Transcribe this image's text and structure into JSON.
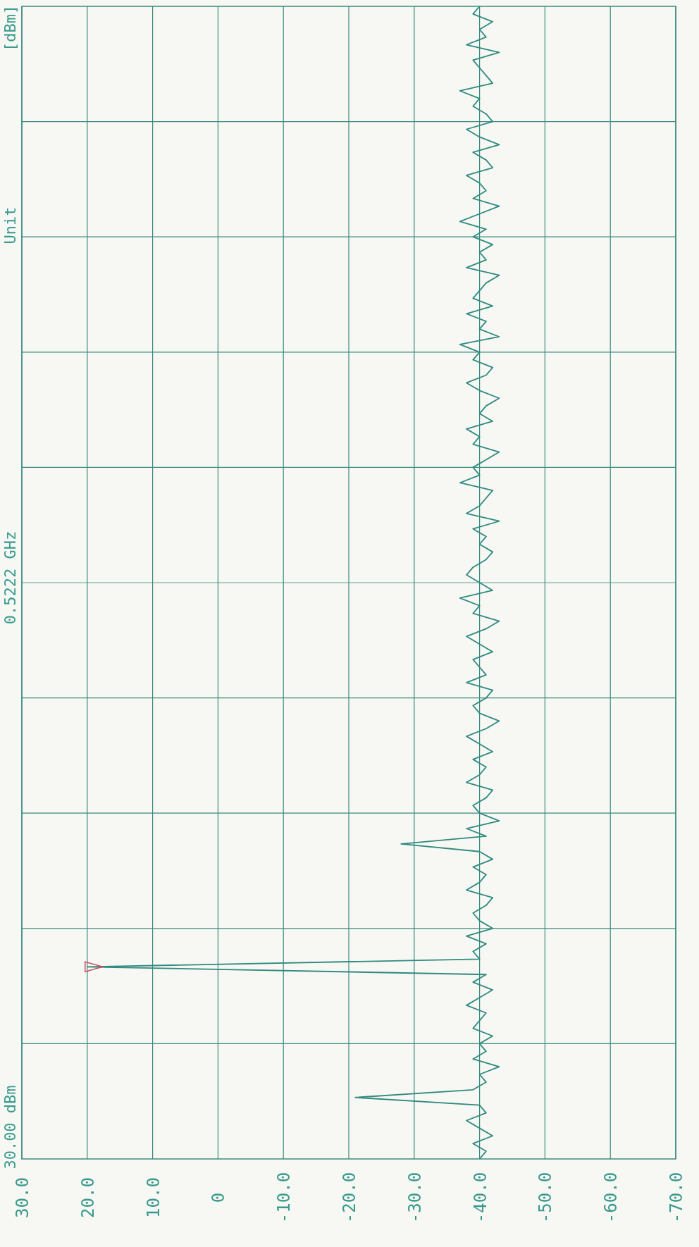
{
  "chart_data": {
    "type": "line",
    "categories": [
      null,
      null,
      null,
      null,
      null,
      null,
      null,
      null,
      null,
      null,
      null,
      null,
      null,
      null,
      null,
      null,
      null,
      null,
      null,
      null,
      null,
      null,
      null,
      null,
      null,
      null,
      null,
      null,
      null,
      null,
      null,
      null,
      null,
      null,
      null,
      null,
      null,
      null,
      null,
      null,
      null,
      null,
      null,
      null,
      null,
      null,
      null,
      null,
      null,
      null,
      null,
      null,
      null,
      null,
      null,
      null,
      null,
      null,
      null,
      null,
      null,
      null,
      null,
      null,
      null,
      null,
      null,
      null,
      null,
      null,
      null,
      null,
      null,
      null,
      null,
      null,
      null,
      null,
      null,
      null,
      null,
      null,
      null,
      null,
      null,
      null,
      null,
      null,
      null,
      null,
      null,
      null,
      null,
      null,
      null,
      null,
      null,
      null,
      null,
      null,
      null,
      null,
      null,
      null,
      null,
      null,
      null,
      null,
      null,
      null,
      null,
      null,
      null,
      null,
      null,
      null,
      null,
      null,
      null,
      null,
      null,
      null,
      null,
      null,
      null,
      null,
      null,
      null,
      null,
      null,
      null,
      null,
      null,
      null,
      null,
      null,
      null,
      null,
      null,
      null,
      null,
      null,
      null,
      null,
      null,
      null,
      null,
      null,
      null,
      null,
      null
    ],
    "series": [
      {
        "color": "#2f8a80",
        "values": [
          -40,
          -39,
          -42,
          -40,
          -41,
          -38,
          -43,
          -39,
          -40,
          -41,
          -42,
          -37,
          -40,
          -39,
          -41,
          -42,
          -38,
          -40,
          -43,
          -39,
          -41,
          -42,
          -38,
          -40,
          -41,
          -39,
          -43,
          -40,
          -37,
          -41,
          -39,
          -42,
          -40,
          -41,
          -38,
          -43,
          -41,
          -40,
          -39,
          -42,
          -38,
          -41,
          -40,
          -43,
          -37,
          -40,
          -39,
          -42,
          -41,
          -38,
          -40,
          -43,
          -41,
          -40,
          -42,
          -38,
          -40,
          -39,
          -43,
          -41,
          -39,
          -40,
          -37,
          -42,
          -41,
          -40,
          -38,
          -43,
          -39,
          -41,
          -40,
          -42,
          -41,
          -39,
          -38,
          -40,
          -42,
          -37,
          -40,
          -39,
          -43,
          -41,
          -38,
          -40,
          -42,
          -39,
          -40,
          -41,
          -38,
          -42,
          -41,
          -39,
          -40,
          -43,
          -41,
          -38,
          -40,
          -42,
          -39,
          -41,
          -40,
          -38,
          -42,
          -41,
          -39,
          -40,
          -43,
          -38,
          -41,
          -28,
          -40,
          -42,
          -39,
          -41,
          -40,
          -38,
          -42,
          -41,
          -39,
          -40,
          -42,
          -38,
          -41,
          -39,
          -40,
          20,
          -41,
          -39,
          -42,
          -40,
          -38,
          -41,
          -40,
          -39,
          -42,
          -40,
          -41,
          -39,
          -43,
          -40,
          -41,
          -39,
          -21,
          -40,
          -41,
          -38,
          -40,
          -42,
          -39,
          -41,
          -40
        ]
      }
    ],
    "orientation": "horizontal",
    "xlim": [
      30,
      -70
    ],
    "xticks": [
      {
        "value": 30,
        "label": "30.0"
      },
      {
        "value": 20,
        "label": "20.0"
      },
      {
        "value": 10,
        "label": "10.0"
      },
      0,
      {
        "value": -10,
        "label": "-10.0"
      },
      {
        "value": -20,
        "label": "-20.0"
      },
      {
        "value": -30,
        "label": "-30.0"
      },
      {
        "value": -40,
        "label": "-40.0"
      },
      {
        "value": -50,
        "label": "-50.0"
      },
      {
        "value": -60,
        "label": "-60.0"
      },
      {
        "value": -70,
        "label": "-70.0"
      }
    ],
    "grid": true,
    "tick_labels": "x",
    "annotations": [
      "30.00 dBm",
      "0.5222 GHz",
      "Unit",
      "[dBm]"
    ]
  }
}
